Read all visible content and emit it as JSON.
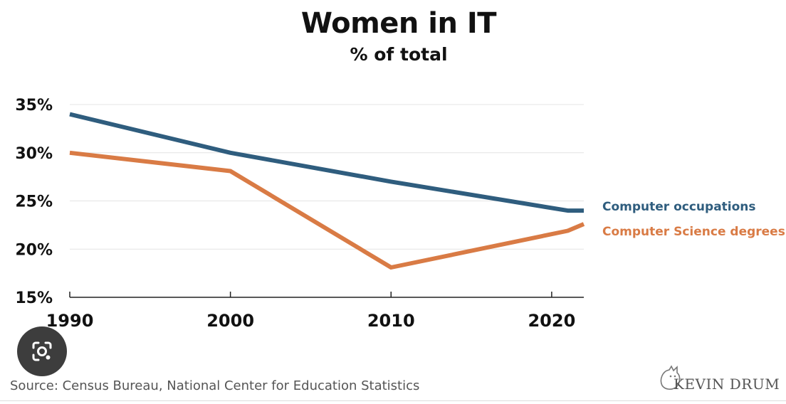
{
  "chart_data": {
    "type": "line",
    "title": "Women in IT",
    "subtitle": "% of total",
    "x_ticks": [
      1990,
      2000,
      2010,
      2020
    ],
    "x_tick_labels": [
      "1990",
      "2000",
      "2010",
      "2020"
    ],
    "xlim": [
      1990,
      2022
    ],
    "y_ticks": [
      15,
      20,
      25,
      30,
      35
    ],
    "y_tick_labels": [
      "15%",
      "20%",
      "25%",
      "30%",
      "35%"
    ],
    "ylim": [
      15,
      35
    ],
    "grid": true,
    "legend_position": "right",
    "series": [
      {
        "name": "Computer occupations",
        "color": "#2f5d7e",
        "x": [
          1990,
          2000,
          2010,
          2021,
          2022
        ],
        "values": [
          34,
          30,
          27,
          24,
          24
        ]
      },
      {
        "name": "Computer Science degrees",
        "color": "#d97b45",
        "x": [
          1990,
          2000,
          2010,
          2021,
          2022
        ],
        "values": [
          30,
          28.1,
          18.1,
          21.9,
          22.6
        ]
      }
    ]
  },
  "source": "Source: Census Bureau, National Center for Education Statistics",
  "brand": {
    "name": "KEVIN DRUM",
    "icon": "cat-icon"
  },
  "overlay": {
    "icon": "lens-camera-icon"
  }
}
